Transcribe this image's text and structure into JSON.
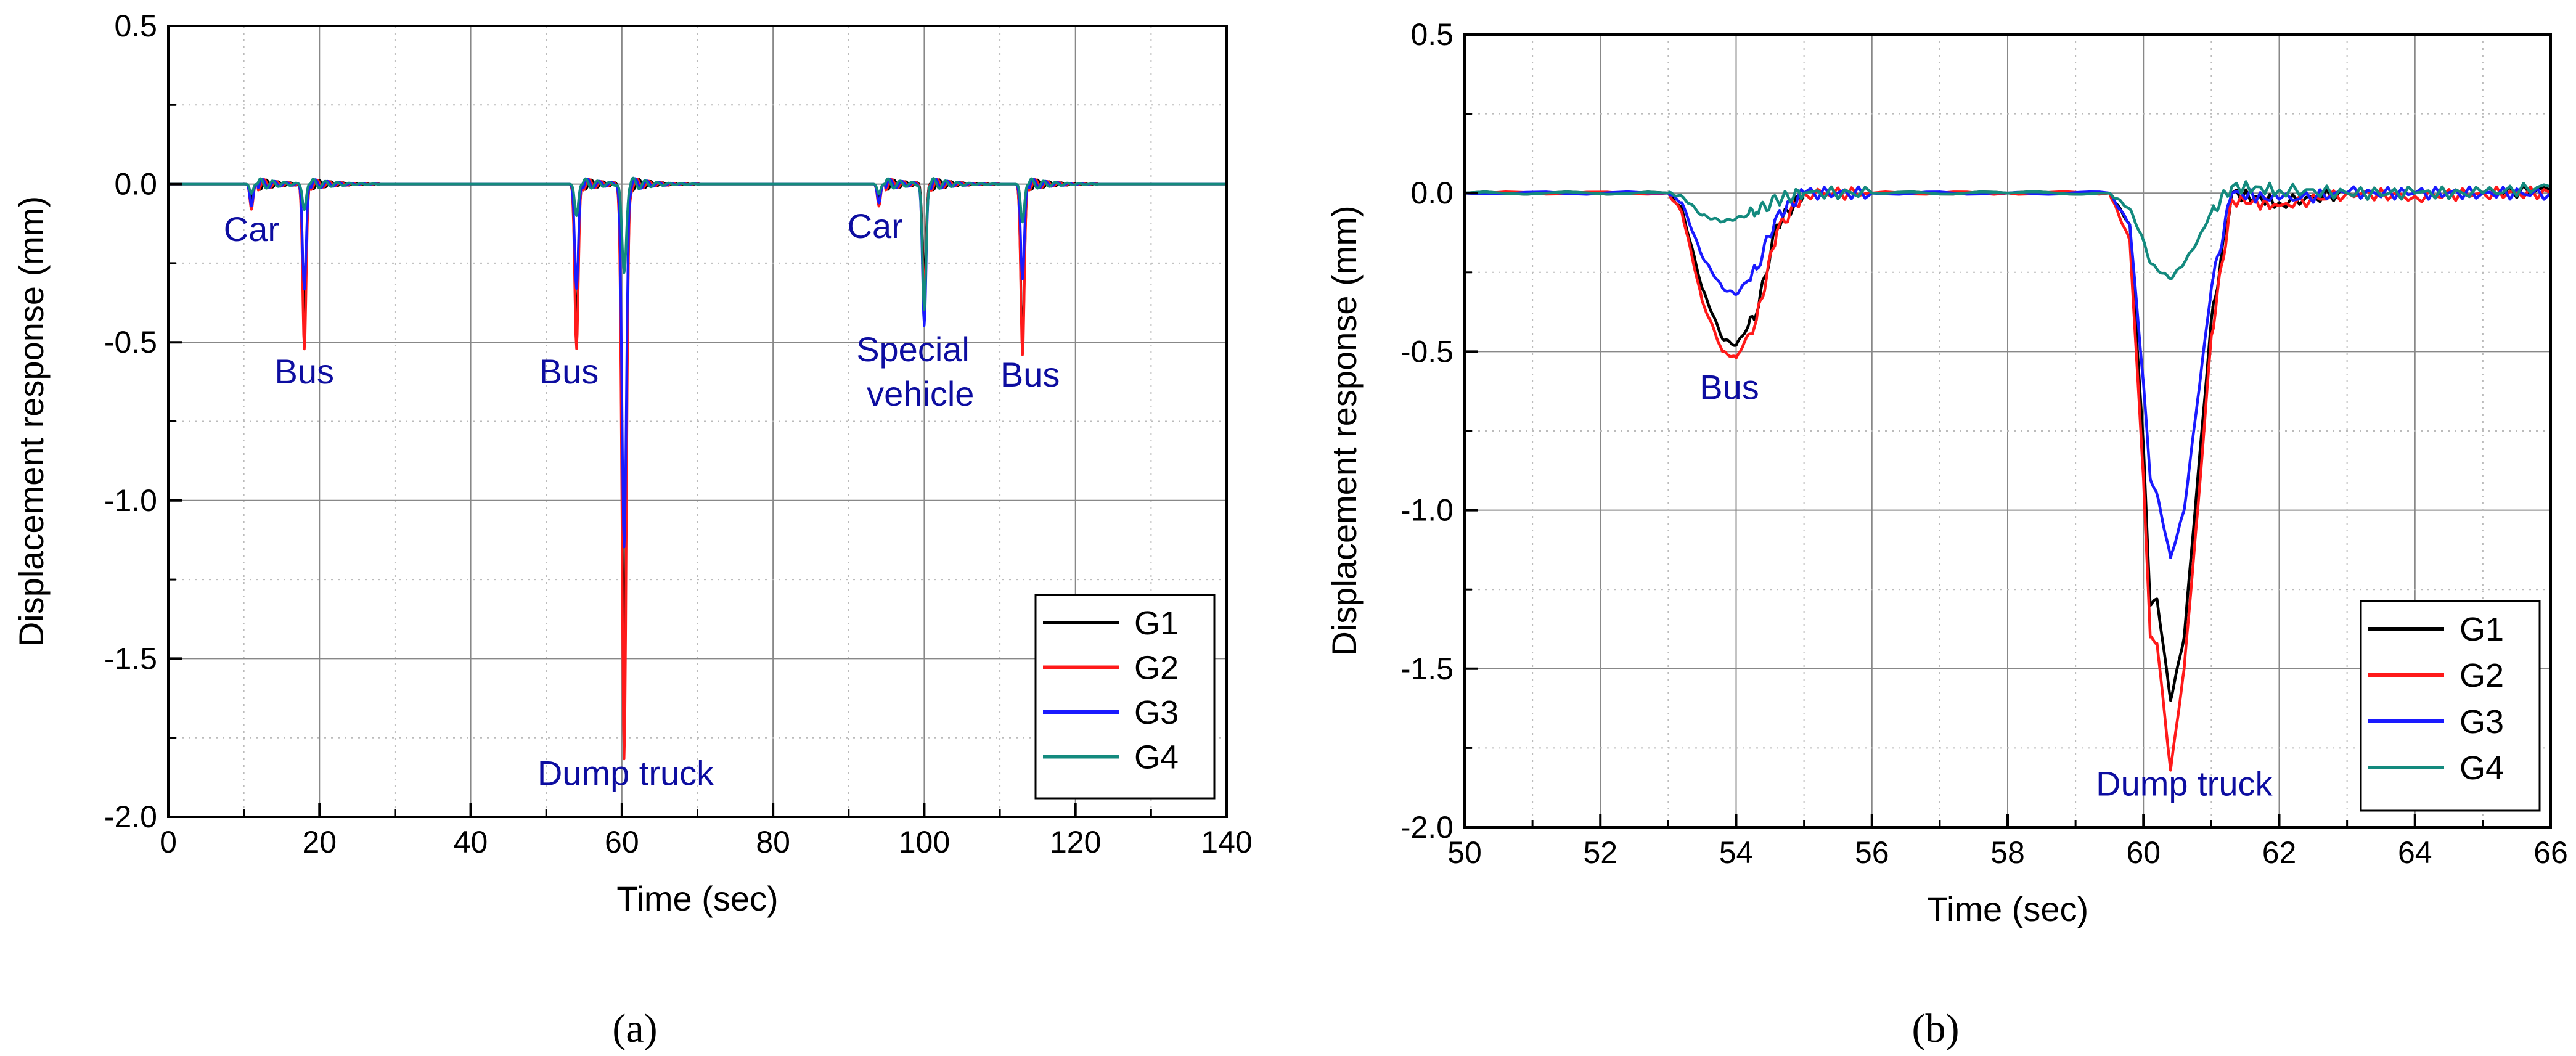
{
  "figure": {
    "caption_a": "(a)",
    "caption_b": "(b)"
  },
  "colors": {
    "G1": "#000000",
    "G2": "#ff1a1a",
    "G3": "#1a1aff",
    "G4": "#138a7e",
    "annotation": "#0d0da0"
  },
  "chart_data": [
    {
      "type": "line",
      "panel": "a",
      "xlabel": "Time (sec)",
      "ylabel": "Displacement response (mm)",
      "xlim": [
        0,
        140
      ],
      "ylim": [
        -2.0,
        0.5
      ],
      "xticks": [
        0,
        20,
        40,
        60,
        80,
        100,
        120,
        140
      ],
      "xtick_labels": [
        "0",
        "20",
        "40",
        "60",
        "80",
        "100",
        "120",
        "140"
      ],
      "yticks": [
        0.5,
        0.0,
        -0.5,
        -1.0,
        -1.5,
        -2.0
      ],
      "ytick_labels": [
        "0.5",
        "0.0",
        "-0.5",
        "-1.0",
        "-1.5",
        "-2.0"
      ],
      "grid": true,
      "legend": {
        "position": "bottom-right",
        "entries": [
          "G1",
          "G2",
          "G3",
          "G4"
        ]
      },
      "events": [
        {
          "t": 11,
          "w": 0.9,
          "G1": -0.05,
          "G2": -0.08,
          "G3": -0.07,
          "G4": -0.03
        },
        {
          "t": 18,
          "w": 1.0,
          "G1": -0.42,
          "G2": -0.52,
          "G3": -0.33,
          "G4": -0.08
        },
        {
          "t": 54,
          "w": 1.0,
          "G1": -0.45,
          "G2": -0.52,
          "G3": -0.33,
          "G4": -0.1
        },
        {
          "t": 60.3,
          "w": 1.2,
          "G1": -1.6,
          "G2": -1.82,
          "G3": -1.15,
          "G4": -0.28
        },
        {
          "t": 94,
          "w": 0.9,
          "G1": -0.05,
          "G2": -0.07,
          "G3": -0.06,
          "G4": -0.03
        },
        {
          "t": 100,
          "w": 1.0,
          "G1": -0.3,
          "G2": -0.35,
          "G3": -0.45,
          "G4": -0.4
        },
        {
          "t": 113,
          "w": 1.0,
          "G1": -0.5,
          "G2": -0.54,
          "G3": -0.3,
          "G4": -0.12
        }
      ],
      "annotations": [
        {
          "text": "Car",
          "x": 11,
          "y": -0.18
        },
        {
          "text": "Bus",
          "x": 18,
          "y": -0.63
        },
        {
          "text": "Bus",
          "x": 53,
          "y": -0.63
        },
        {
          "text": "Dump truck",
          "x": 60.5,
          "y": -1.9
        },
        {
          "text": "Car",
          "x": 93.5,
          "y": -0.17
        },
        {
          "text": "Special",
          "x": 98.5,
          "y": -0.56
        },
        {
          "text": "vehicle",
          "x": 99.5,
          "y": -0.7
        },
        {
          "text": "Bus",
          "x": 114,
          "y": -0.64
        }
      ]
    },
    {
      "type": "line",
      "panel": "b",
      "xlabel": "Time (sec)",
      "ylabel": "Displacement response (mm)",
      "xlim": [
        50,
        66
      ],
      "ylim": [
        -2.0,
        0.5
      ],
      "xticks": [
        50,
        52,
        54,
        56,
        58,
        60,
        62,
        64,
        66
      ],
      "xtick_labels": [
        "50",
        "52",
        "54",
        "56",
        "58",
        "60",
        "62",
        "64",
        "66"
      ],
      "yticks": [
        0.5,
        0.0,
        -0.5,
        -1.0,
        -1.5,
        -2.0
      ],
      "ytick_labels": [
        "0.5",
        "0.0",
        "-0.5",
        "-1.0",
        "-1.5",
        "-2.0"
      ],
      "grid": true,
      "legend": {
        "position": "bottom-right",
        "entries": [
          "G1",
          "G2",
          "G3",
          "G4"
        ]
      },
      "series": [
        {
          "name": "G1",
          "x": [
            50,
            53,
            53.2,
            53.5,
            53.8,
            54.0,
            54.3,
            54.6,
            55.0,
            56,
            58,
            59.5,
            59.8,
            60.0,
            60.1,
            60.2,
            60.4,
            60.6,
            60.8,
            61.0,
            61.3,
            62,
            63,
            64,
            65,
            66
          ],
          "y": [
            0,
            0,
            -0.05,
            -0.3,
            -0.46,
            -0.48,
            -0.38,
            -0.1,
            0.0,
            0.0,
            0.0,
            0.0,
            -0.1,
            -0.8,
            -1.3,
            -1.28,
            -1.6,
            -1.4,
            -0.9,
            -0.4,
            0.0,
            -0.03,
            0.0,
            0.0,
            0.0,
            0.01
          ]
        },
        {
          "name": "G2",
          "x": [
            50,
            53,
            53.2,
            53.5,
            53.8,
            54.0,
            54.3,
            54.6,
            55.0,
            56,
            58,
            59.5,
            59.8,
            60.0,
            60.1,
            60.2,
            60.4,
            60.6,
            60.8,
            61.0,
            61.3,
            62,
            63,
            64,
            65,
            66
          ],
          "y": [
            0,
            0,
            -0.06,
            -0.34,
            -0.5,
            -0.52,
            -0.4,
            -0.12,
            0.0,
            0.0,
            0.0,
            0.0,
            -0.15,
            -0.9,
            -1.4,
            -1.42,
            -1.82,
            -1.5,
            -1.0,
            -0.45,
            -0.02,
            -0.04,
            0.0,
            -0.01,
            0.0,
            0.0
          ]
        },
        {
          "name": "G3",
          "x": [
            50,
            53,
            53.2,
            53.5,
            53.8,
            54.0,
            54.3,
            54.6,
            55.0,
            56,
            58,
            59.5,
            59.8,
            60.0,
            60.1,
            60.2,
            60.4,
            60.6,
            60.8,
            61.0,
            61.3,
            62,
            63,
            64,
            65,
            66
          ],
          "y": [
            0,
            0,
            -0.03,
            -0.2,
            -0.3,
            -0.32,
            -0.24,
            -0.07,
            0.0,
            0.0,
            0.0,
            0.0,
            -0.1,
            -0.6,
            -0.9,
            -0.95,
            -1.15,
            -1.0,
            -0.65,
            -0.3,
            0.0,
            -0.02,
            0.0,
            0.0,
            0.0,
            0.0
          ]
        },
        {
          "name": "G4",
          "x": [
            50,
            53,
            53.2,
            53.5,
            53.8,
            54.0,
            54.3,
            54.6,
            55.0,
            56,
            58,
            59.5,
            59.8,
            60.0,
            60.1,
            60.2,
            60.4,
            60.6,
            60.8,
            61.0,
            61.3,
            62,
            63,
            64,
            65,
            66
          ],
          "y": [
            0,
            0,
            -0.01,
            -0.07,
            -0.09,
            -0.08,
            -0.06,
            -0.02,
            0.0,
            0.0,
            0.0,
            0.0,
            -0.05,
            -0.15,
            -0.22,
            -0.24,
            -0.27,
            -0.22,
            -0.15,
            -0.06,
            0.02,
            0.01,
            0.0,
            0.0,
            0.0,
            0.02
          ]
        }
      ],
      "annotations": [
        {
          "text": "Bus",
          "x": 53.9,
          "y": -0.65
        },
        {
          "text": "Dump truck",
          "x": 60.6,
          "y": -1.9
        }
      ]
    }
  ]
}
